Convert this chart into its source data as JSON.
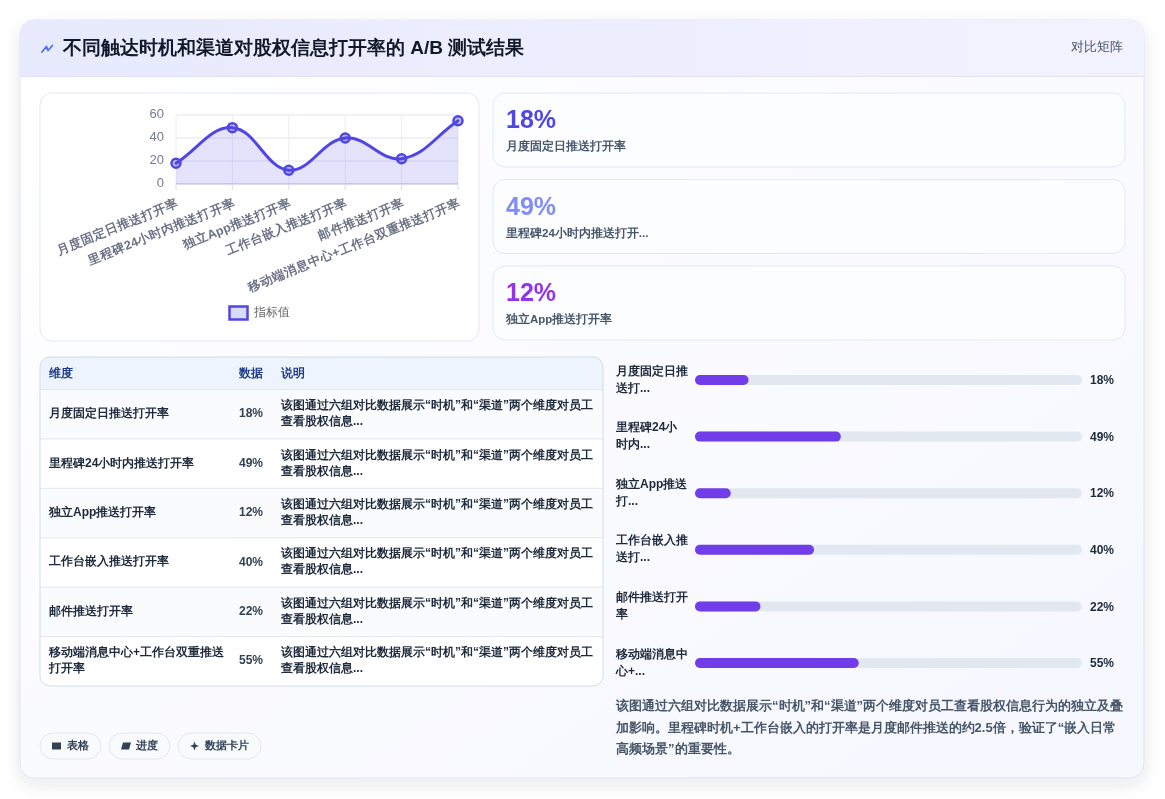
{
  "chart_data": [
    {
      "type": "other",
      "title": "不同触达时机和渠道对股权信息打开率的 A/B 测试结果",
      "annotations": [
        "对比矩阵"
      ]
    },
    {
      "type": "area",
      "categories": [
        "月度固定日推送打开率",
        "里程碑24小时内推送打开率",
        "独立App推送打开率",
        "工作台嵌入推送打开率",
        "邮件推送打开率",
        "移动端消息中心+工作台双重推送打开率"
      ],
      "series": [
        {
          "name": "指标值",
          "color": "#4f46e5",
          "values": [
            18,
            49,
            12,
            40,
            22,
            55
          ]
        }
      ],
      "ylim": [
        0,
        60
      ],
      "yticks": [
        0,
        20,
        40,
        60
      ],
      "grid": true,
      "legend": "bottom",
      "marker": "circle"
    },
    {
      "type": "other",
      "categories": [
        "月度固定日推送打开率",
        "里程碑24小时内推送打开...",
        "独立App推送打开率"
      ],
      "value_labels": [
        "18%",
        "49%",
        "12%"
      ]
    },
    {
      "type": "other",
      "categories": [
        "月度固定日推送打开率",
        "里程碑24小时内推送打开率",
        "独立App推送打开率",
        "工作台嵌入推送打开率",
        "邮件推送打开率",
        "移动端消息中心+工作台双重推送打开率"
      ],
      "value_labels": [
        "18%",
        "49%",
        "12%",
        "40%",
        "22%",
        "55%"
      ],
      "annotations": [
        "维度",
        "数据",
        "说明",
        "该图通过六组对比数据展示“时机”和“渠道”两个维度对员工查看股权信息...",
        "该图通过六组对比数据展示“时机”和“渠道”两个维度对员工查看股权信息...",
        "该图通过六组对比数据展示“时机”和“渠道”两个维度对员工查看股权信息...",
        "该图通过六组对比数据展示“时机”和“渠道”两个维度对员工查看股权信息...",
        "该图通过六组对比数据展示“时机”和“渠道”两个维度对员工查看股权信息...",
        "该图通过六组对比数据展示“时机”和“渠道”两个维度对员工查看股权信息..."
      ]
    },
    {
      "type": "bar",
      "orientation": "horizontal",
      "categories": [
        "月度固定日推送打...",
        "里程碑24小时内...",
        "独立App推送打...",
        "工作台嵌入推送打...",
        "邮件推送打开率",
        "移动端消息中心+..."
      ],
      "values": [
        18,
        49,
        12,
        40,
        22,
        55
      ],
      "value_labels": [
        "18%",
        "49%",
        "12%",
        "40%",
        "22%",
        "55%"
      ],
      "color": "#713de8",
      "xlim": [
        0,
        130
      ],
      "tick_labels": "y",
      "annotations": [
        "该图通过六组对比数据展示“时机”和“渠道”两个维度对员工查看股权信息行为的独立及叠加影响。里程碑时机+工作台嵌入的打开率是月度邮件推送的约2.5倍，验证了“嵌入日常高频场景”的重要性。"
      ]
    },
    {
      "type": "other",
      "annotations": [
        "表格",
        "进度",
        "数据卡片"
      ]
    }
  ]
}
